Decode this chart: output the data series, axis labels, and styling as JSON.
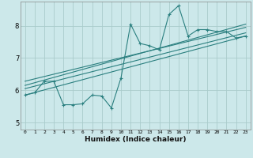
{
  "xlabel": "Humidex (Indice chaleur)",
  "bg_color": "#cce8ea",
  "grid_color": "#aacccc",
  "line_color": "#2a7f7f",
  "xlim": [
    -0.5,
    23.5
  ],
  "ylim": [
    4.78,
    8.75
  ],
  "yticks": [
    5,
    6,
    7,
    8
  ],
  "xticks": [
    0,
    1,
    2,
    3,
    4,
    5,
    6,
    7,
    8,
    9,
    10,
    11,
    12,
    13,
    14,
    15,
    16,
    17,
    18,
    19,
    20,
    21,
    22,
    23
  ],
  "main_line": [
    [
      0,
      5.85
    ],
    [
      1,
      5.92
    ],
    [
      2,
      6.28
    ],
    [
      3,
      6.28
    ],
    [
      4,
      5.55
    ],
    [
      5,
      5.55
    ],
    [
      6,
      5.58
    ],
    [
      7,
      5.85
    ],
    [
      8,
      5.82
    ],
    [
      9,
      5.45
    ],
    [
      10,
      6.38
    ],
    [
      11,
      8.05
    ],
    [
      12,
      7.45
    ],
    [
      13,
      7.38
    ],
    [
      14,
      7.25
    ],
    [
      15,
      8.35
    ],
    [
      16,
      8.62
    ],
    [
      17,
      7.68
    ],
    [
      18,
      7.88
    ],
    [
      19,
      7.88
    ],
    [
      20,
      7.82
    ],
    [
      21,
      7.82
    ],
    [
      22,
      7.62
    ],
    [
      23,
      7.68
    ]
  ],
  "regression_lines": [
    {
      "x": [
        0,
        23
      ],
      "y": [
        5.85,
        7.68
      ]
    },
    {
      "x": [
        0,
        23
      ],
      "y": [
        6.15,
        8.05
      ]
    },
    {
      "x": [
        0,
        23
      ],
      "y": [
        6.28,
        7.95
      ]
    },
    {
      "x": [
        0,
        23
      ],
      "y": [
        6.05,
        7.78
      ]
    }
  ]
}
